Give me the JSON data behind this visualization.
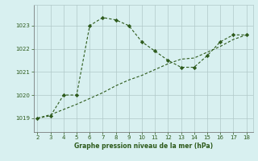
{
  "line1_x": [
    2,
    3,
    4,
    5,
    6,
    7,
    8,
    9,
    10,
    11,
    12,
    13,
    14,
    15,
    16,
    17,
    18
  ],
  "line1_y": [
    1019.0,
    1019.1,
    1020.0,
    1020.0,
    1023.0,
    1023.35,
    1023.25,
    1023.0,
    1022.3,
    1021.9,
    1021.5,
    1021.2,
    1021.2,
    1021.7,
    1022.3,
    1022.6,
    1022.6
  ],
  "line2_x": [
    2,
    3,
    5,
    6,
    7,
    8,
    9,
    10,
    11,
    12,
    13,
    14,
    15,
    16,
    17,
    18
  ],
  "line2_y": [
    1019.0,
    1019.15,
    1019.6,
    1019.85,
    1020.1,
    1020.4,
    1020.65,
    1020.85,
    1021.1,
    1021.35,
    1021.55,
    1021.6,
    1021.85,
    1022.1,
    1022.4,
    1022.6
  ],
  "line_color": "#2d5a1b",
  "bg_color": "#d8f0f0",
  "grid_color": "#b0c8c8",
  "xlabel": "Graphe pression niveau de la mer (hPa)",
  "xticks": [
    2,
    3,
    4,
    5,
    6,
    7,
    8,
    9,
    10,
    11,
    12,
    13,
    14,
    15,
    16,
    17,
    18
  ],
  "yticks": [
    1019,
    1020,
    1021,
    1022,
    1023
  ],
  "ylim": [
    1018.4,
    1023.9
  ],
  "xlim": [
    1.7,
    18.5
  ]
}
